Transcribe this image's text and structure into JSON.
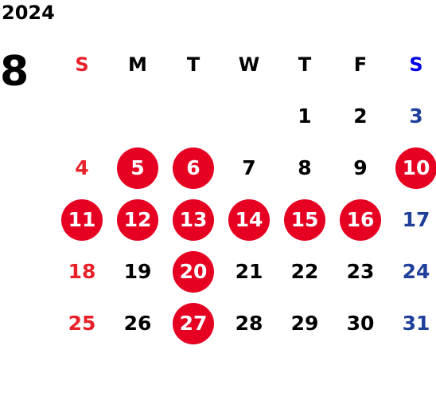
{
  "year": "2024",
  "month": "8",
  "colors": {
    "weekday": "#000000",
    "sunday": "#e8202a",
    "saturday_header": "#0000e6",
    "saturday": "#1f3f9a",
    "holiday_circle": "#e60022",
    "holiday_text": "#ffffff"
  },
  "weekday_headers": [
    "S",
    "M",
    "T",
    "W",
    "T",
    "F",
    "S"
  ],
  "weeks": [
    [
      {
        "d": ""
      },
      {
        "d": ""
      },
      {
        "d": ""
      },
      {
        "d": ""
      },
      {
        "d": "1",
        "c": "weekday"
      },
      {
        "d": "2",
        "c": "weekday"
      },
      {
        "d": "3",
        "c": "saturday"
      }
    ],
    [
      {
        "d": "4",
        "c": "sunday"
      },
      {
        "d": "5",
        "c": "holiday"
      },
      {
        "d": "6",
        "c": "holiday"
      },
      {
        "d": "7",
        "c": "weekday"
      },
      {
        "d": "8",
        "c": "weekday"
      },
      {
        "d": "9",
        "c": "weekday"
      },
      {
        "d": "10",
        "c": "holiday"
      }
    ],
    [
      {
        "d": "11",
        "c": "holiday"
      },
      {
        "d": "12",
        "c": "holiday"
      },
      {
        "d": "13",
        "c": "holiday"
      },
      {
        "d": "14",
        "c": "holiday"
      },
      {
        "d": "15",
        "c": "holiday"
      },
      {
        "d": "16",
        "c": "holiday"
      },
      {
        "d": "17",
        "c": "saturday"
      }
    ],
    [
      {
        "d": "18",
        "c": "sunday"
      },
      {
        "d": "19",
        "c": "weekday"
      },
      {
        "d": "20",
        "c": "holiday"
      },
      {
        "d": "21",
        "c": "weekday"
      },
      {
        "d": "22",
        "c": "weekday"
      },
      {
        "d": "23",
        "c": "weekday"
      },
      {
        "d": "24",
        "c": "saturday"
      }
    ],
    [
      {
        "d": "25",
        "c": "sunday"
      },
      {
        "d": "26",
        "c": "weekday"
      },
      {
        "d": "27",
        "c": "holiday"
      },
      {
        "d": "28",
        "c": "weekday"
      },
      {
        "d": "29",
        "c": "weekday"
      },
      {
        "d": "30",
        "c": "weekday"
      },
      {
        "d": "31",
        "c": "saturday"
      }
    ]
  ]
}
